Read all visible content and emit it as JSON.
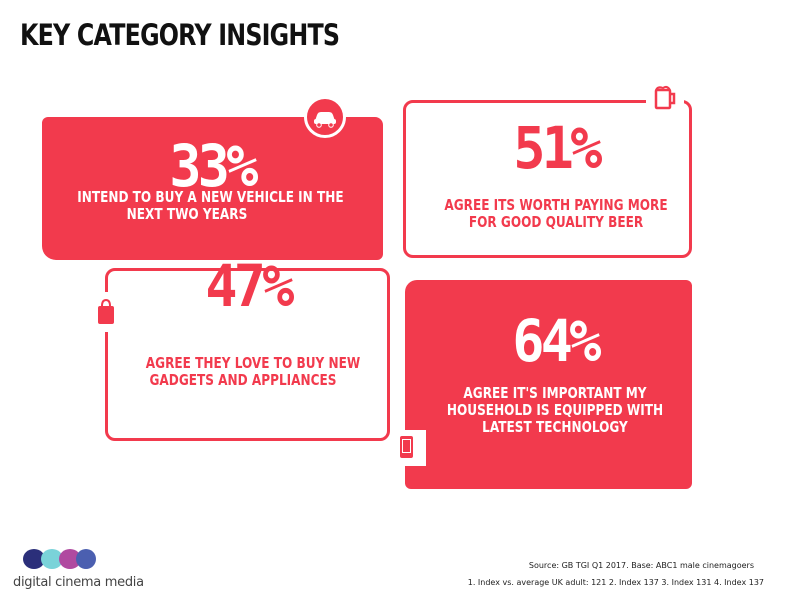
{
  "title": "KEY CATEGORY INSIGHTS",
  "cards": [
    {
      "percent": "33%",
      "line1": "INTEND TO BUY A NEW VEHICLE IN THE",
      "line2": "NEXT TWO YEARS",
      "icon": "car-icon"
    },
    {
      "percent": "51%",
      "line1": "AGREE ITS WORTH PAYING MORE",
      "line2": "FOR GOOD QUALITY BEER",
      "icon": "beer-icon"
    },
    {
      "percent": "47%",
      "line1": "AGREE THEY LOVE TO BUY NEW",
      "line2": "GADGETS AND APPLIANCES",
      "icon": "shopping-bag-icon"
    },
    {
      "percent": "64%",
      "line1": "AGREE IT'S IMPORTANT MY",
      "line2": "HOUSEHOLD IS EQUIPPED WITH",
      "line3": "LATEST TECHNOLOGY",
      "icon": "phone-icon"
    }
  ],
  "footer": {
    "source": "Source: GB TGI Q1 2017. Base: ABC1 male cinemagoers",
    "index_notes": "1. Index vs. average UK adult: 121 2. Index 137 3. Index 131 4. Index 137",
    "logo_text": "digital cinema media"
  },
  "colors": {
    "accent": "#f23a4d",
    "title": "#111111"
  }
}
